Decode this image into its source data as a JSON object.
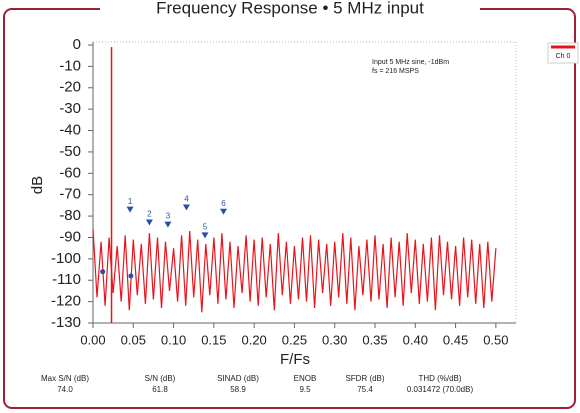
{
  "chart_data": {
    "type": "spectrum",
    "title": "Frequency Response • 5 MHz input",
    "xlabel": "F/Fs",
    "ylabel": "dB",
    "annotations": [
      "Input 5 MHz sine, -1dBm",
      "fs = 216 MSPS"
    ],
    "legend": "top-right",
    "xlim": [
      0,
      0.525
    ],
    "ylim": [
      -130,
      0
    ],
    "xticks": [
      {
        "value": 0,
        "label": "0.00"
      },
      0.05,
      {
        "value": 0.1,
        "label": "0.10"
      },
      0.15,
      {
        "value": 0.2,
        "label": "0.20"
      },
      0.25,
      {
        "value": 0.3,
        "label": "0.30"
      },
      0.35,
      {
        "value": 0.4,
        "label": "0.40"
      },
      0.45,
      {
        "value": 0.5,
        "label": "0.50"
      }
    ],
    "yticks": [
      0,
      -10,
      -20,
      -30,
      -40,
      -50,
      -60,
      -70,
      -80,
      -90,
      -100,
      -110,
      -120,
      -130
    ],
    "fundamental": {
      "x": 0.023,
      "value": -1,
      "color": "#e8141c"
    },
    "series": [
      {
        "name": "Ch 0",
        "color": "#e8141c",
        "x": [
          0,
          0.005,
          0.01,
          0.015,
          0.02,
          0.025,
          0.03,
          0.035,
          0.04,
          0.045,
          0.05,
          0.055,
          0.06,
          0.065,
          0.07,
          0.075,
          0.08,
          0.085,
          0.09,
          0.095,
          0.1,
          0.105,
          0.11,
          0.115,
          0.12,
          0.125,
          0.13,
          0.135,
          0.14,
          0.145,
          0.15,
          0.155,
          0.16,
          0.165,
          0.17,
          0.175,
          0.18,
          0.185,
          0.19,
          0.195,
          0.2,
          0.205,
          0.21,
          0.215,
          0.22,
          0.225,
          0.23,
          0.235,
          0.24,
          0.245,
          0.25,
          0.255,
          0.26,
          0.265,
          0.27,
          0.275,
          0.28,
          0.285,
          0.29,
          0.295,
          0.3,
          0.305,
          0.31,
          0.315,
          0.32,
          0.325,
          0.33,
          0.335,
          0.34,
          0.345,
          0.35,
          0.355,
          0.36,
          0.365,
          0.37,
          0.375,
          0.38,
          0.385,
          0.39,
          0.395,
          0.4,
          0.405,
          0.41,
          0.415,
          0.42,
          0.425,
          0.43,
          0.435,
          0.44,
          0.445,
          0.45,
          0.455,
          0.46,
          0.465,
          0.47,
          0.475,
          0.48,
          0.485,
          0.49,
          0.495,
          0.5
        ],
        "values": [
          -86,
          -118,
          -92,
          -122,
          -90,
          -116,
          -94,
          -120,
          -89,
          -124,
          -91,
          -117,
          -93,
          -121,
          -88,
          -119,
          -90,
          -123,
          -92,
          -115,
          -95,
          -120,
          -89,
          -122,
          -87,
          -118,
          -91,
          -125,
          -93,
          -117,
          -90,
          -121,
          -88,
          -119,
          -92,
          -123,
          -94,
          -116,
          -89,
          -120,
          -91,
          -122,
          -90,
          -118,
          -93,
          -124,
          -88,
          -117,
          -92,
          -121,
          -94,
          -119,
          -90,
          -120,
          -89,
          -123,
          -91,
          -116,
          -93,
          -122,
          -92,
          -118,
          -88,
          -121,
          -90,
          -124,
          -94,
          -117,
          -91,
          -120,
          -89,
          -119,
          -93,
          -123,
          -90,
          -118,
          -92,
          -122,
          -88,
          -116,
          -91,
          -121,
          -93,
          -120,
          -90,
          -124,
          -89,
          -117,
          -92,
          -119,
          -94,
          -122,
          -90,
          -118,
          -91,
          -121,
          -93,
          -123,
          -92,
          -120,
          -95
        ]
      }
    ],
    "markers": [
      {
        "label": "1",
        "x": 0.046,
        "value": -77
      },
      {
        "label": "2",
        "x": 0.07,
        "value": -83
      },
      {
        "label": "3",
        "x": 0.093,
        "value": -84
      },
      {
        "label": "4",
        "x": 0.116,
        "value": -76
      },
      {
        "label": "5",
        "x": 0.139,
        "value": -89
      },
      {
        "label": "6",
        "x": 0.162,
        "value": -78
      }
    ],
    "dots": [
      {
        "x": 0.012,
        "value": -106
      },
      {
        "x": 0.047,
        "value": -108
      }
    ],
    "stats": [
      {
        "label": "Max S/N (dB)",
        "value": "74.0"
      },
      {
        "label": "S/N (dB)",
        "value": "61.8"
      },
      {
        "label": "SINAD (dB)",
        "value": "58.9"
      },
      {
        "label": "ENOB",
        "value": "9.5"
      },
      {
        "label": "SFDR (dB)",
        "value": "75.4"
      },
      {
        "label": "THD (%/dB)",
        "value": "0.031472 (70.0dB)"
      }
    ]
  }
}
